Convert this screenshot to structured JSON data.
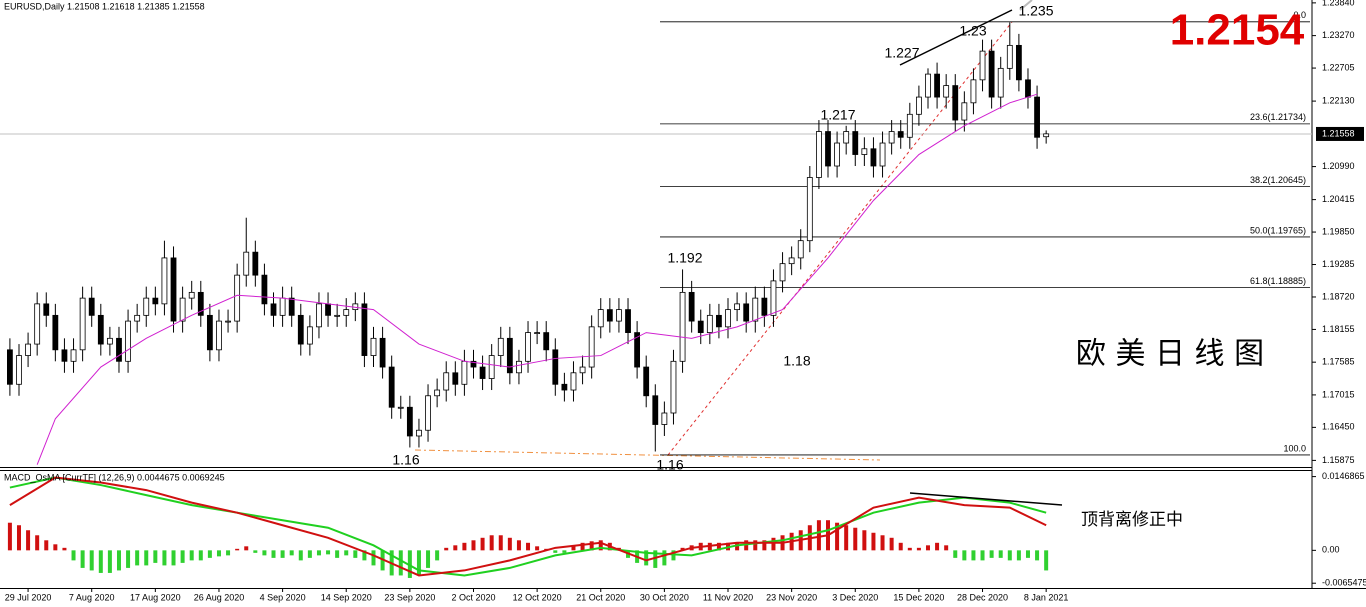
{
  "chart_data": [
    {
      "type": "candlestick",
      "header": "EURUSD,Daily  1.21508 1.21618 1.21385 1.21558",
      "opens": [
        1.178,
        1.172,
        1.177,
        1.179,
        1.186,
        1.184,
        1.178,
        1.176,
        1.178,
        1.187,
        1.184,
        1.179,
        1.18,
        1.176,
        1.183,
        1.184,
        1.187,
        1.186,
        1.194,
        1.183,
        1.187,
        1.188,
        1.184,
        1.178,
        1.183,
        1.183,
        1.191,
        1.195,
        1.191,
        1.186,
        1.184,
        1.187,
        1.184,
        1.179,
        1.182,
        1.186,
        1.184,
        1.184,
        1.185,
        1.186,
        1.177,
        1.18,
        1.175,
        1.168,
        1.168,
        1.163,
        1.164,
        1.17,
        1.171,
        1.174,
        1.172,
        1.176,
        1.175,
        1.173,
        1.177,
        1.18,
        1.174,
        1.176,
        1.181,
        1.181,
        1.178,
        1.172,
        1.171,
        1.174,
        1.175,
        1.182,
        1.185,
        1.183,
        1.185,
        1.181,
        1.175,
        1.17,
        1.165,
        1.167,
        1.176,
        1.188,
        1.183,
        1.181,
        1.184,
        1.182,
        1.185,
        1.186,
        1.183,
        1.187,
        1.184,
        1.19,
        1.193,
        1.194,
        1.197,
        1.208,
        1.216,
        1.21,
        1.214,
        1.216,
        1.212,
        1.213,
        1.21,
        1.214,
        1.216,
        1.215,
        1.219,
        1.222,
        1.226,
        1.222,
        1.224,
        1.218,
        1.221,
        1.225,
        1.23,
        1.222,
        1.227,
        1.231,
        1.225,
        1.222,
        1.2151
      ],
      "highs": [
        1.18,
        1.179,
        1.181,
        1.188,
        1.188,
        1.186,
        1.18,
        1.18,
        1.189,
        1.189,
        1.186,
        1.182,
        1.182,
        1.185,
        1.186,
        1.189,
        1.189,
        1.197,
        1.196,
        1.189,
        1.19,
        1.19,
        1.186,
        1.185,
        1.185,
        1.193,
        1.201,
        1.197,
        1.193,
        1.188,
        1.189,
        1.189,
        1.186,
        1.184,
        1.188,
        1.188,
        1.186,
        1.187,
        1.188,
        1.188,
        1.182,
        1.182,
        1.177,
        1.17,
        1.17,
        1.166,
        1.172,
        1.173,
        1.176,
        1.176,
        1.178,
        1.178,
        1.177,
        1.179,
        1.182,
        1.182,
        1.178,
        1.183,
        1.183,
        1.183,
        1.18,
        1.174,
        1.176,
        1.177,
        1.184,
        1.187,
        1.187,
        1.187,
        1.187,
        1.183,
        1.177,
        1.172,
        1.169,
        1.178,
        1.192,
        1.19,
        1.185,
        1.186,
        1.186,
        1.187,
        1.188,
        1.188,
        1.189,
        1.189,
        1.192,
        1.195,
        1.196,
        1.199,
        1.21,
        1.218,
        1.218,
        1.216,
        1.217,
        1.218,
        1.215,
        1.215,
        1.216,
        1.218,
        1.218,
        1.221,
        1.224,
        1.227,
        1.228,
        1.226,
        1.226,
        1.223,
        1.227,
        1.232,
        1.232,
        1.229,
        1.235,
        1.233,
        1.227,
        1.224,
        1.2162
      ],
      "lows": [
        1.17,
        1.17,
        1.175,
        1.177,
        1.182,
        1.176,
        1.174,
        1.174,
        1.176,
        1.182,
        1.177,
        1.177,
        1.174,
        1.174,
        1.181,
        1.182,
        1.184,
        1.184,
        1.181,
        1.181,
        1.185,
        1.182,
        1.176,
        1.176,
        1.181,
        1.181,
        1.189,
        1.189,
        1.184,
        1.182,
        1.182,
        1.182,
        1.177,
        1.177,
        1.18,
        1.182,
        1.182,
        1.182,
        1.183,
        1.175,
        1.175,
        1.173,
        1.166,
        1.166,
        1.161,
        1.161,
        1.162,
        1.168,
        1.169,
        1.17,
        1.17,
        1.173,
        1.171,
        1.171,
        1.175,
        1.172,
        1.172,
        1.174,
        1.179,
        1.176,
        1.17,
        1.169,
        1.169,
        1.172,
        1.173,
        1.18,
        1.181,
        1.181,
        1.179,
        1.173,
        1.168,
        1.1603,
        1.163,
        1.165,
        1.174,
        1.181,
        1.179,
        1.179,
        1.18,
        1.18,
        1.183,
        1.181,
        1.181,
        1.182,
        1.182,
        1.188,
        1.191,
        1.192,
        1.195,
        1.206,
        1.208,
        1.208,
        1.212,
        1.21,
        1.21,
        1.208,
        1.208,
        1.212,
        1.213,
        1.213,
        1.217,
        1.22,
        1.22,
        1.22,
        1.216,
        1.216,
        1.219,
        1.223,
        1.22,
        1.22,
        1.225,
        1.223,
        1.22,
        1.213,
        1.2139
      ],
      "closes": [
        1.172,
        1.177,
        1.179,
        1.186,
        1.184,
        1.178,
        1.176,
        1.178,
        1.187,
        1.184,
        1.179,
        1.18,
        1.176,
        1.183,
        1.184,
        1.187,
        1.186,
        1.194,
        1.183,
        1.187,
        1.188,
        1.184,
        1.178,
        1.183,
        1.183,
        1.191,
        1.195,
        1.191,
        1.186,
        1.184,
        1.187,
        1.184,
        1.179,
        1.182,
        1.186,
        1.184,
        1.184,
        1.185,
        1.186,
        1.177,
        1.18,
        1.175,
        1.168,
        1.168,
        1.163,
        1.164,
        1.17,
        1.171,
        1.174,
        1.172,
        1.176,
        1.175,
        1.173,
        1.177,
        1.18,
        1.174,
        1.176,
        1.181,
        1.181,
        1.178,
        1.172,
        1.171,
        1.174,
        1.175,
        1.182,
        1.185,
        1.183,
        1.185,
        1.181,
        1.175,
        1.17,
        1.165,
        1.167,
        1.176,
        1.188,
        1.183,
        1.181,
        1.184,
        1.182,
        1.185,
        1.186,
        1.183,
        1.187,
        1.184,
        1.19,
        1.193,
        1.194,
        1.197,
        1.208,
        1.216,
        1.21,
        1.214,
        1.216,
        1.212,
        1.213,
        1.21,
        1.214,
        1.216,
        1.215,
        1.219,
        1.222,
        1.226,
        1.222,
        1.224,
        1.218,
        1.221,
        1.225,
        1.23,
        1.222,
        1.227,
        1.231,
        1.225,
        1.222,
        1.215,
        1.2156
      ],
      "up_color": "#ffffff",
      "down_color": "#000000",
      "ma": {
        "color": "#d020d0",
        "x": [
          3,
          5,
          10,
          15,
          20,
          25,
          30,
          35,
          40,
          45,
          50,
          55,
          60,
          65,
          70,
          75,
          80,
          85,
          90,
          95,
          100,
          105,
          110,
          113
        ],
        "values": [
          1.158,
          1.166,
          1.175,
          1.18,
          1.184,
          1.1875,
          1.187,
          1.186,
          1.185,
          1.179,
          1.176,
          1.175,
          1.1765,
          1.177,
          1.181,
          1.18,
          1.182,
          1.185,
          1.194,
          1.204,
          1.212,
          1.217,
          1.221,
          1.2225
        ]
      },
      "levels": [
        {
          "value": 1.2351,
          "label": "0.0"
        },
        {
          "value": 1.21734,
          "label": "23.6(1.21734)"
        },
        {
          "value": 1.20645,
          "label": "38.2(1.20645)"
        },
        {
          "value": 1.19765,
          "label": "50.0(1.19765)"
        },
        {
          "value": 1.18885,
          "label": "61.8(1.18885)"
        },
        {
          "value": 1.1597,
          "label": "100.0"
        }
      ],
      "last_price": 1.21558,
      "ylim": [
        1.1576,
        1.2389
      ],
      "yticks": [
        {
          "value": 1.2384,
          "label": "1.23840"
        },
        {
          "value": 1.2327,
          "label": "1.23270"
        },
        1.22705,
        {
          "value": 1.2213,
          "label": "1.22130"
        },
        {
          "value": 1.2099,
          "label": "1.20990"
        },
        1.20415,
        {
          "value": 1.1985,
          "label": "1.19850"
        },
        1.19285,
        {
          "value": 1.1872,
          "label": "1.18720"
        },
        1.18155,
        1.17585,
        1.17015,
        {
          "value": 1.1645,
          "label": "1.16450"
        },
        1.15875
      ],
      "annotations": [
        "1.235",
        "1.23",
        "1.227",
        "1.217",
        "1.192",
        "1.18",
        "1.16",
        "1.16",
        "1.2154",
        "欧 美 日 线 图"
      ]
    },
    {
      "type": "macd",
      "header": "MACD_OsMA [CurrTF] (12,26,9) 0.0044675 0.0069245",
      "histogram": [
        0.0055,
        0.005,
        0.004,
        0.003,
        0.002,
        0.0012,
        0.0005,
        -0.002,
        -0.0035,
        -0.004,
        -0.0045,
        -0.0045,
        -0.004,
        -0.0035,
        -0.003,
        -0.003,
        -0.0025,
        -0.003,
        -0.003,
        -0.0025,
        -0.002,
        -0.002,
        -0.0015,
        -0.0012,
        -0.001,
        0.0003,
        0.0008,
        -0.0005,
        -0.001,
        -0.0015,
        -0.0015,
        -0.001,
        -0.002,
        -0.0015,
        -0.001,
        -0.0008,
        -0.0015,
        -0.001,
        -0.0015,
        -0.002,
        -0.003,
        -0.004,
        -0.005,
        -0.005,
        -0.0055,
        -0.005,
        -0.0035,
        -0.002,
        0.0005,
        0.001,
        0.0015,
        0.002,
        0.0025,
        0.003,
        0.003,
        0.0025,
        0.002,
        0.0015,
        0.0008,
        0.0003,
        -0.0005,
        -0.0005,
        0.001,
        0.0015,
        0.0018,
        0.002,
        0.0015,
        0.0005,
        -0.0015,
        -0.0025,
        -0.003,
        -0.0035,
        -0.003,
        -0.002,
        0.0005,
        0.001,
        0.0015,
        0.0015,
        0.0015,
        0.0015,
        0.0015,
        0.002,
        0.002,
        0.002,
        0.0025,
        0.003,
        0.0035,
        0.004,
        0.005,
        0.006,
        0.006,
        0.0055,
        0.005,
        0.0045,
        0.004,
        0.0035,
        0.003,
        0.0025,
        0.0015,
        0.0005,
        0.0005,
        0.001,
        0.0015,
        0.001,
        -0.0015,
        -0.002,
        -0.002,
        -0.002,
        -0.0015,
        -0.0015,
        -0.002,
        -0.002,
        -0.0015,
        -0.002,
        -0.004
      ],
      "positive_color": "#d01010",
      "negative_color": "#30d030",
      "x": [
        0,
        5,
        10,
        15,
        20,
        25,
        30,
        35,
        40,
        45,
        50,
        55,
        60,
        65,
        70,
        75,
        80,
        85,
        90,
        95,
        100,
        105,
        110,
        114
      ],
      "series": [
        {
          "color": "#20d020",
          "values": [
            0.0125,
            0.0145,
            0.013,
            0.011,
            0.009,
            0.0075,
            0.006,
            0.0045,
            0.001,
            -0.004,
            -0.005,
            -0.0035,
            -0.001,
            0.0005,
            -0.0005,
            -0.001,
            0.001,
            0.002,
            0.004,
            0.0075,
            0.0095,
            0.0105,
            0.0095,
            0.0075
          ]
        },
        {
          "color": "#d01010",
          "values": [
            0.009,
            0.0145,
            0.0135,
            0.012,
            0.0095,
            0.0075,
            0.005,
            0.0025,
            -0.001,
            -0.005,
            -0.004,
            -0.002,
            0.0005,
            0.0015,
            -0.002,
            0.0005,
            0.0015,
            0.0015,
            0.003,
            0.0085,
            0.0105,
            0.009,
            0.0085,
            0.005
          ]
        }
      ],
      "ylim": [
        -0.0075,
        0.016
      ],
      "yticks": [
        0.0146865,
        {
          "value": 0,
          "label": "0.00"
        },
        -0.0065475
      ],
      "xticks": [
        {
          "value": 2,
          "label": "29 Jul 2020"
        },
        {
          "value": 9,
          "label": "7 Aug 2020"
        },
        {
          "value": 16,
          "label": "17 Aug 2020"
        },
        {
          "value": 23,
          "label": "26 Aug 2020"
        },
        {
          "value": 30,
          "label": "4 Sep 2020"
        },
        {
          "value": 37,
          "label": "14 Sep 2020"
        },
        {
          "value": 44,
          "label": "23 Sep 2020"
        },
        {
          "value": 51,
          "label": "2 Oct 2020"
        },
        {
          "value": 58,
          "label": "12 Oct 2020"
        },
        {
          "value": 65,
          "label": "21 Oct 2020"
        },
        {
          "value": 72,
          "label": "30 Oct 2020"
        },
        {
          "value": 79,
          "label": "11 Nov 2020"
        },
        {
          "value": 86,
          "label": "23 Nov 2020"
        },
        {
          "value": 93,
          "label": "3 Dec 2020"
        },
        {
          "value": 100,
          "label": "15 Dec 2020"
        },
        {
          "value": 107,
          "label": "28 Dec 2020"
        },
        {
          "value": 114,
          "label": "8 Jan 2021"
        }
      ],
      "annotations": [
        "顶背离修正中"
      ]
    }
  ]
}
